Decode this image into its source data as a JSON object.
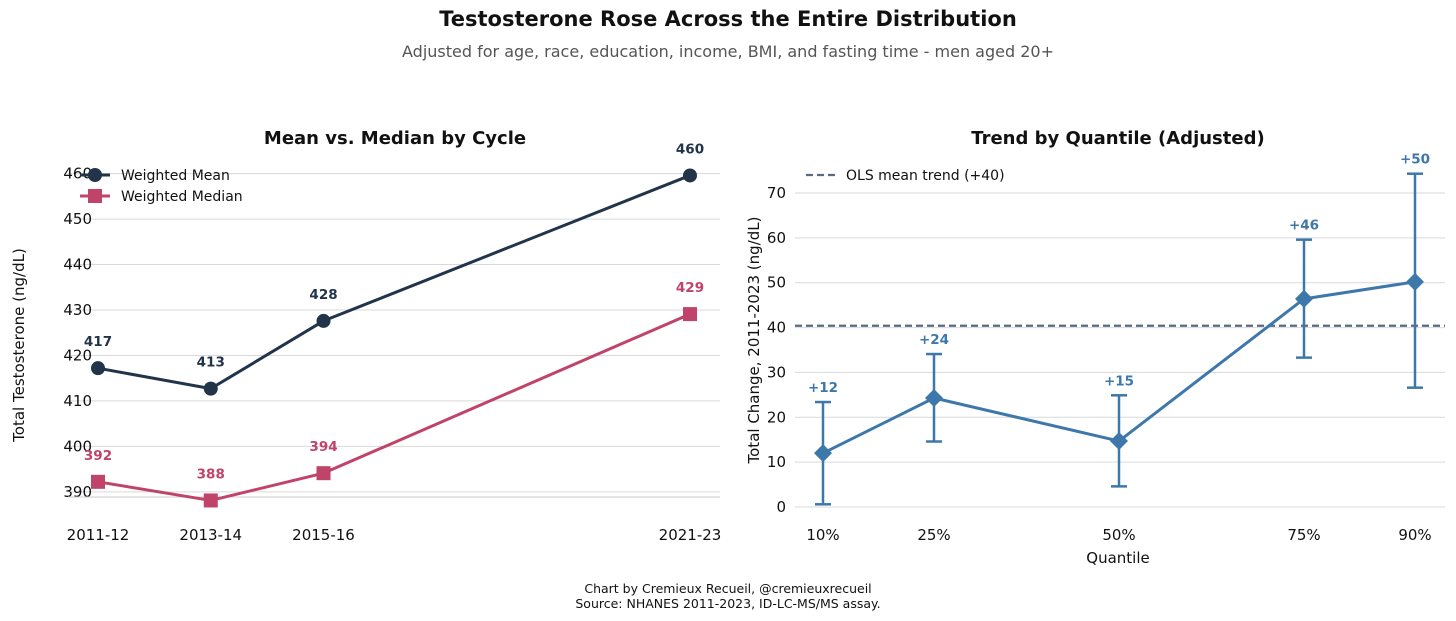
{
  "title": "Testosterone Rose Across the Entire Distribution",
  "subtitle": "Adjusted for age, race, education, income, BMI, and fasting time - men aged 20+",
  "footer": {
    "line1": "Chart by Cremieux Recueil, @cremieuxrecueil",
    "line2": "Source: NHANES 2011-2023, ID-LC-MS/MS assay."
  },
  "chart_data": [
    {
      "type": "line",
      "title": "Mean vs. Median by Cycle",
      "xlabel": "",
      "ylabel": "Total Testosterone (ng/dL)",
      "categories": [
        "2011-12",
        "2013-14",
        "2015-16",
        "2021-23"
      ],
      "x_positions": [
        2011.5,
        2013.5,
        2015.5,
        2022
      ],
      "ylim": [
        386,
        463
      ],
      "yticks": [
        390,
        400,
        410,
        420,
        430,
        440,
        450,
        460
      ],
      "grid": true,
      "legend_position": "top-left",
      "series": [
        {
          "name": "Weighted Mean",
          "values": [
            417.2,
            412.7,
            427.6,
            459.6
          ],
          "labels": [
            "417",
            "413",
            "428",
            "460"
          ],
          "color": "#22344a",
          "marker": "circle"
        },
        {
          "name": "Weighted Median",
          "values": [
            392.2,
            388.1,
            394.1,
            429.1
          ],
          "labels": [
            "392",
            "388",
            "394",
            "429"
          ],
          "color": "#c0436a",
          "marker": "square"
        }
      ]
    },
    {
      "type": "line",
      "title": "Trend by Quantile (Adjusted)",
      "xlabel": "Quantile",
      "ylabel": "Total Change, 2011-2023 (ng/dL)",
      "categories": [
        "10%",
        "25%",
        "50%",
        "75%",
        "90%"
      ],
      "x": [
        0.1,
        0.25,
        0.5,
        0.75,
        0.9
      ],
      "ylim": [
        -1.5,
        76
      ],
      "yticks": [
        0,
        10,
        20,
        30,
        40,
        50,
        60,
        70
      ],
      "grid": true,
      "legend_position": "top-left",
      "series": [
        {
          "name": "",
          "values": [
            12.0,
            24.3,
            14.7,
            46.4,
            50.2
          ],
          "ci_low": [
            0.6,
            14.6,
            4.6,
            33.3,
            26.6
          ],
          "ci_high": [
            23.4,
            34.1,
            24.9,
            59.6,
            74.3
          ],
          "labels": [
            "+12",
            "+24",
            "+15",
            "+46",
            "+50"
          ],
          "color": "#3e78aa",
          "marker": "diamond"
        }
      ],
      "reference_line": {
        "name": "OLS mean trend (+40)",
        "value": 40.4,
        "color": "#5a6a82",
        "style": "dashed"
      }
    }
  ]
}
